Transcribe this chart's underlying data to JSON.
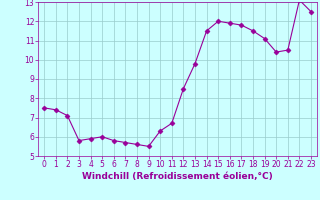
{
  "x": [
    0,
    1,
    2,
    3,
    4,
    5,
    6,
    7,
    8,
    9,
    10,
    11,
    12,
    13,
    14,
    15,
    16,
    17,
    18,
    19,
    20,
    21,
    22,
    23
  ],
  "y": [
    7.5,
    7.4,
    7.1,
    5.8,
    5.9,
    6.0,
    5.8,
    5.7,
    5.6,
    5.5,
    6.3,
    6.7,
    8.5,
    9.8,
    11.5,
    12.0,
    11.9,
    11.8,
    11.5,
    11.1,
    10.4,
    10.5,
    13.1,
    12.5
  ],
  "line_color": "#990099",
  "marker": "D",
  "marker_size": 2.5,
  "background_color": "#ccffff",
  "grid_color": "#99cccc",
  "xlabel": "Windchill (Refroidissement éolien,°C)",
  "xlim": [
    -0.5,
    23.5
  ],
  "ylim": [
    5,
    13
  ],
  "yticks": [
    5,
    6,
    7,
    8,
    9,
    10,
    11,
    12,
    13
  ],
  "xticks": [
    0,
    1,
    2,
    3,
    4,
    5,
    6,
    7,
    8,
    9,
    10,
    11,
    12,
    13,
    14,
    15,
    16,
    17,
    18,
    19,
    20,
    21,
    22,
    23
  ],
  "tick_color": "#990099",
  "label_color": "#990099",
  "spine_color": "#990099",
  "font_size": 5.5,
  "xlabel_font_size": 6.5,
  "line_width": 0.8
}
